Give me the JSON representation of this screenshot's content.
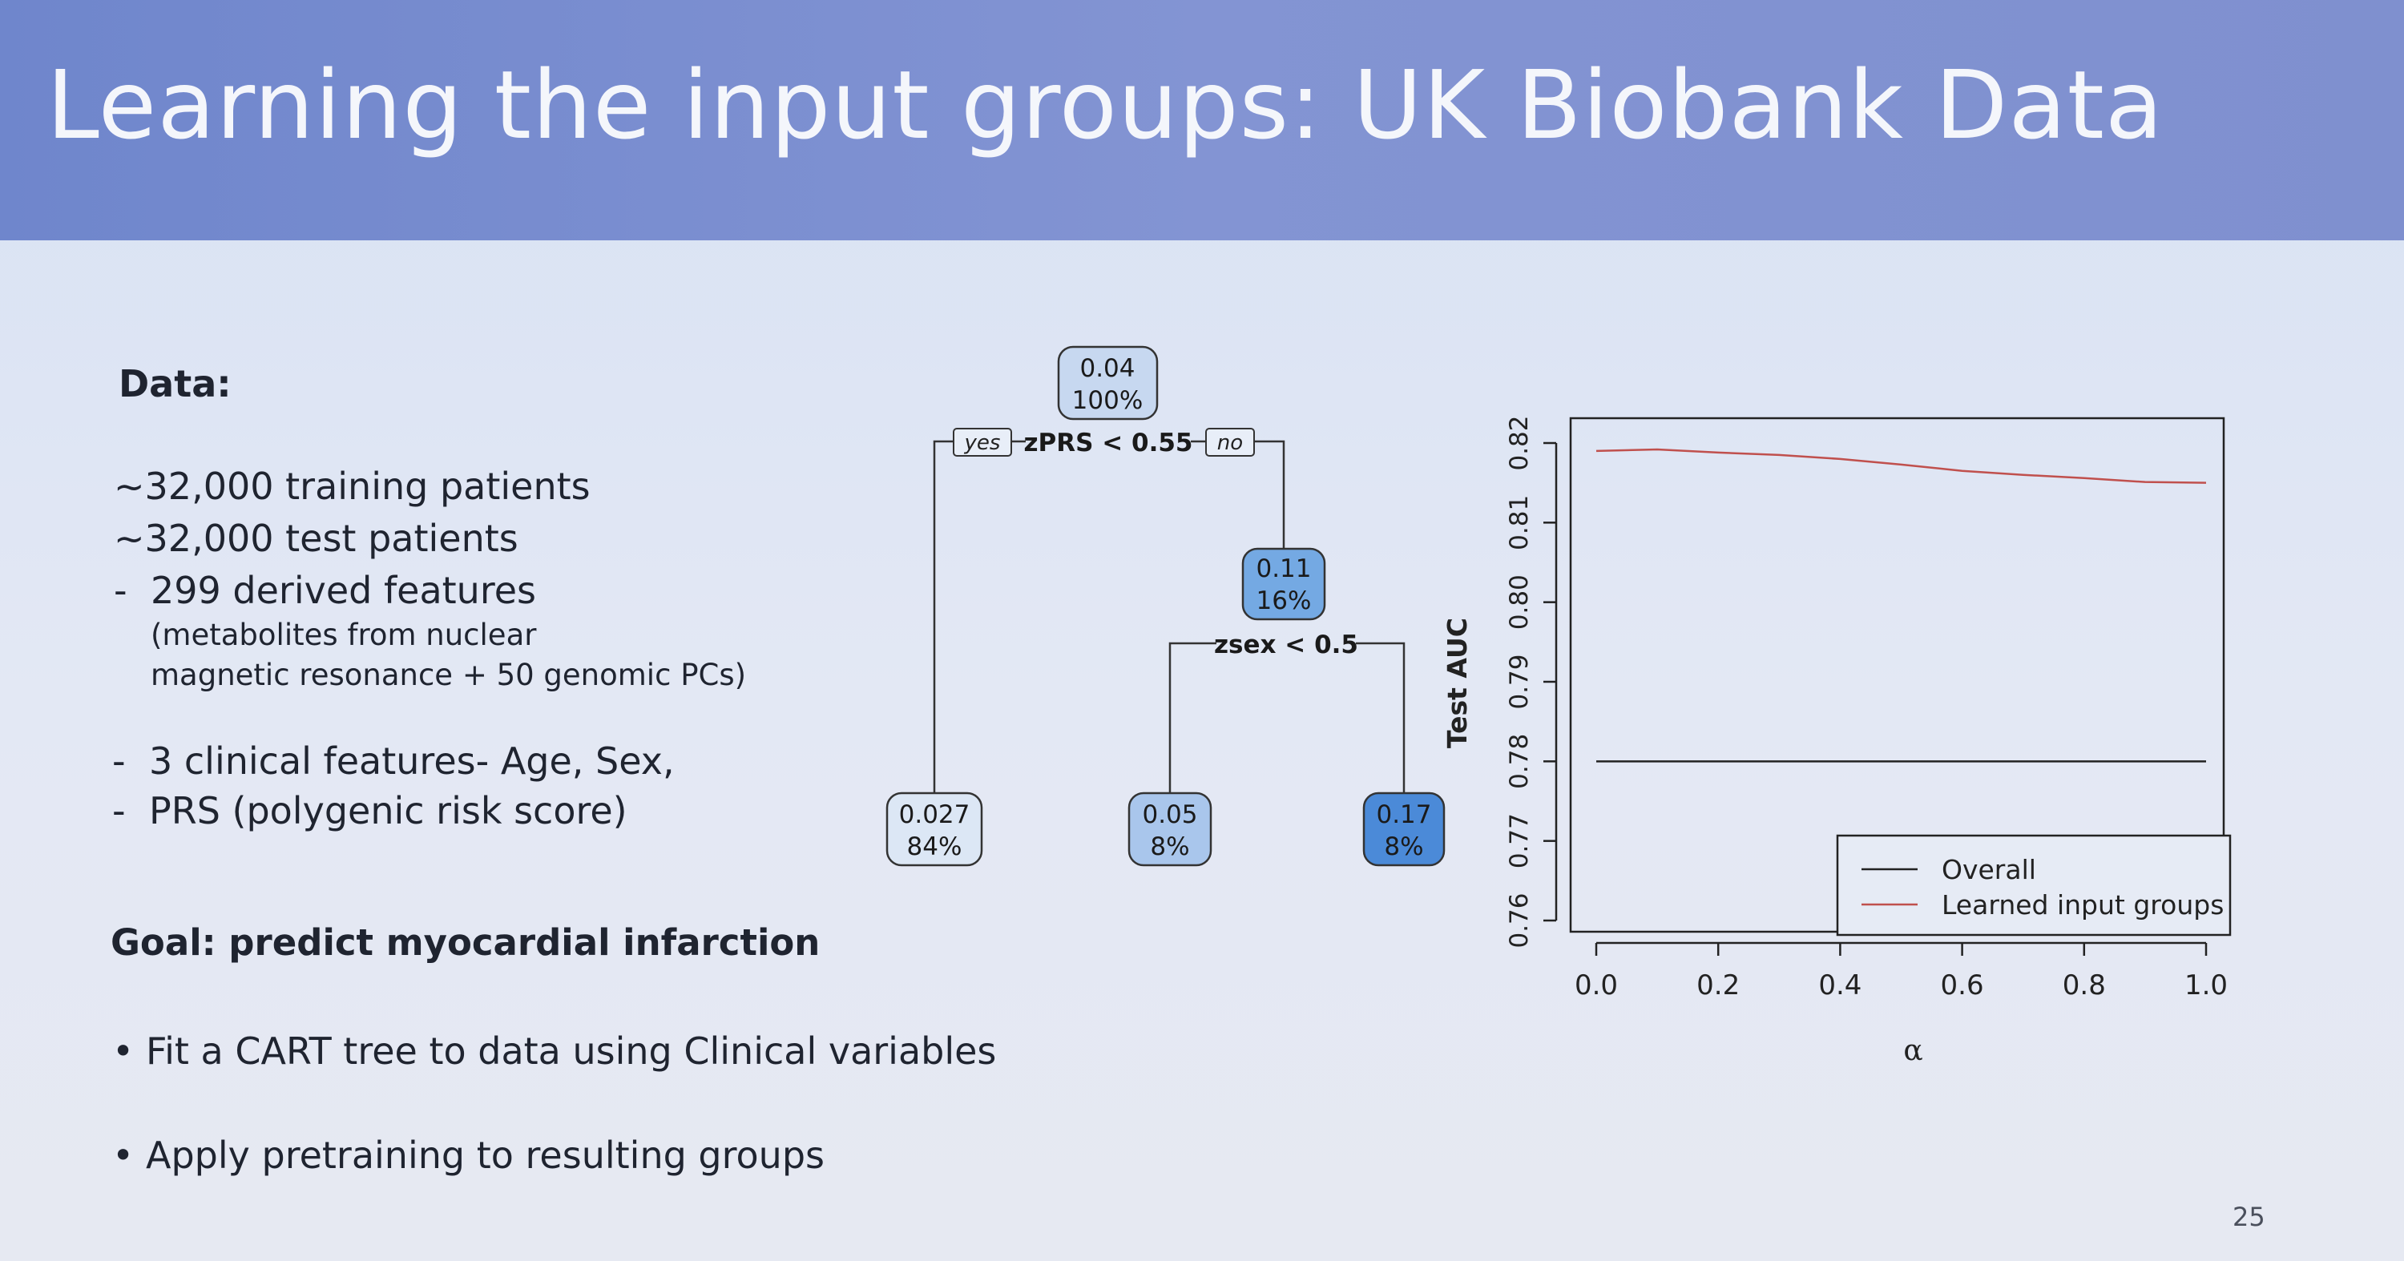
{
  "slide": {
    "title": "Learning the input groups: UK Biobank Data",
    "data_heading": "Data:",
    "lines": [
      "~32,000 training patients",
      "~32,000 test patients",
      "299 derived features",
      "(metabolites from nuclear",
      "magnetic resonance + 50 genomic PCs)",
      "3 clinical features- Age, Sex,",
      "PRS (polygenic risk score)"
    ],
    "dash": "-",
    "goal": "Goal: predict myocardial infarction",
    "bullets": [
      "Fit a CART tree to data using Clinical variables",
      "Apply pretraining to resulting groups"
    ],
    "bullet_symbol": "•",
    "page_number": "25"
  },
  "tree": {
    "nodes": [
      {
        "value": "0.04",
        "percent": "100%",
        "color": "#c7d8f0"
      },
      {
        "value": "0.11",
        "percent": "16%",
        "color": "#74a9e3"
      },
      {
        "value": "0.027",
        "percent": "84%",
        "color": "#dce7f5"
      },
      {
        "value": "0.05",
        "percent": "8%",
        "color": "#a9c6ec"
      },
      {
        "value": "0.17",
        "percent": "8%",
        "color": "#4b8ad8"
      }
    ],
    "splits": [
      {
        "label": "zPRS < 0.55",
        "yes": "yes",
        "no": "no"
      },
      {
        "label": "zsex < 0.5"
      }
    ]
  },
  "chart_data": {
    "type": "line",
    "xlabel": "α",
    "ylabel": "Test AUC",
    "xlim": [
      0.0,
      1.0
    ],
    "ylim": [
      0.76,
      0.82
    ],
    "x_ticks": [
      "0.0",
      "0.2",
      "0.4",
      "0.6",
      "0.8",
      "1.0"
    ],
    "y_ticks": [
      "0.76",
      "0.77",
      "0.78",
      "0.79",
      "0.80",
      "0.81",
      "0.82"
    ],
    "series": [
      {
        "name": "Overall",
        "color": "#222222",
        "x": [
          0.0,
          1.0
        ],
        "y": [
          0.78,
          0.78
        ]
      },
      {
        "name": "Learned input groups",
        "color": "#c0504d",
        "x": [
          0.0,
          0.1,
          0.2,
          0.3,
          0.4,
          0.5,
          0.6,
          0.7,
          0.8,
          0.9,
          1.0
        ],
        "y": [
          0.819,
          0.8192,
          0.8188,
          0.8185,
          0.818,
          0.8173,
          0.8165,
          0.816,
          0.8156,
          0.8151,
          0.815
        ]
      }
    ],
    "legend_position": "bottom-right"
  }
}
